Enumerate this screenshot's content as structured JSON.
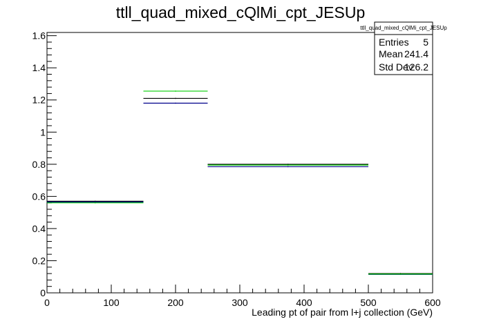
{
  "chart_data": {
    "type": "histogram",
    "title": "ttll_quad_mixed_cQlMi_cpt_JESUp",
    "xlabel": "Leading pt of pair from l+j collection (GeV)",
    "ylabel": "",
    "xlim": [
      0,
      600
    ],
    "ylim": [
      0,
      1.62
    ],
    "x_ticks": [
      0,
      100,
      200,
      300,
      400,
      500,
      600
    ],
    "y_ticks": [
      0,
      0.2,
      0.4,
      0.6,
      0.8,
      1,
      1.2,
      1.4,
      1.6
    ],
    "x_tick_labels": [
      "0",
      "100",
      "200",
      "300",
      "400",
      "500",
      "600"
    ],
    "y_tick_labels": [
      "0",
      "0.2",
      "0.4",
      "0.6",
      "0.8",
      "1",
      "1.2",
      "1.4",
      "1.6"
    ],
    "grid": false,
    "bin_edges": [
      0,
      150,
      250,
      500,
      600
    ],
    "series": [
      {
        "color": "#000000",
        "values": [
          0.57,
          1.21,
          0.8,
          0.12
        ]
      },
      {
        "color": "#00008b",
        "values": [
          0.565,
          1.18,
          0.785,
          0.115
        ]
      },
      {
        "color": "#00cc00",
        "values": [
          0.56,
          1.255,
          0.795,
          0.117
        ]
      }
    ],
    "stats_box": {
      "title": "ttll_quad_mixed_cQlMi_cpt_JESUp",
      "rows": [
        {
          "label": "Entries",
          "value": "5"
        },
        {
          "label": "Mean",
          "value": "241.4"
        },
        {
          "label": "Std Dev",
          "value": "126.2"
        }
      ]
    }
  }
}
